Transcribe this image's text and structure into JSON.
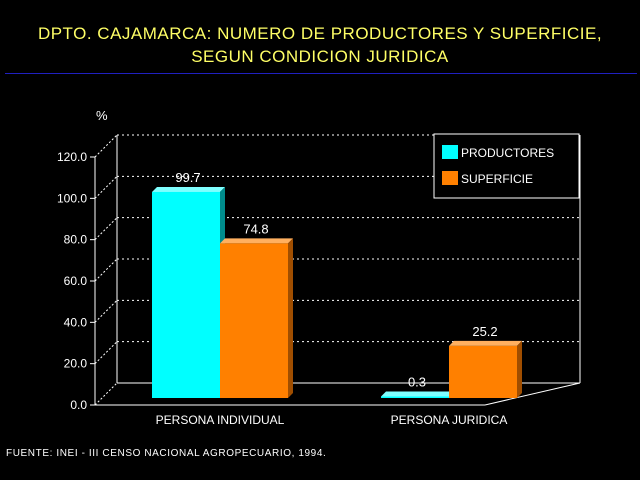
{
  "title_line1": "DPTO. CAJAMARCA: NUMERO DE PRODUCTORES Y SUPERFICIE,",
  "title_line2": "SEGUN CONDICION JURIDICA",
  "source": "FUENTE: INEI - III CENSO NACIONAL AGROPECUARIO, 1994.",
  "colors": {
    "title": "#FFFF66",
    "rule": "#2020C0",
    "productores": "#00FFFF",
    "superficie": "#FF8000",
    "axis": "#FFFFFF"
  },
  "chart_data": {
    "type": "bar",
    "title": "DPTO. CAJAMARCA: NUMERO DE PRODUCTORES Y SUPERFICIE, SEGUN CONDICION JURIDICA",
    "ylabel": "%",
    "xlabel": "",
    "categories": [
      "PERSONA INDIVIDUAL",
      "PERSONA JURIDICA"
    ],
    "series": [
      {
        "name": "PRODUCTORES",
        "values": [
          99.7,
          0.3
        ],
        "labels": [
          "99.7",
          "0.3"
        ]
      },
      {
        "name": "SUPERFICIE",
        "values": [
          74.8,
          25.2
        ],
        "labels": [
          "74.8",
          "25.2"
        ]
      }
    ],
    "yticks": [
      "0.0",
      "20.0",
      "40.0",
      "60.0",
      "80.0",
      "100.0",
      "120.0"
    ],
    "ylim": [
      0,
      120
    ],
    "grid": true,
    "legend_position": "top-right",
    "style": "3d"
  }
}
